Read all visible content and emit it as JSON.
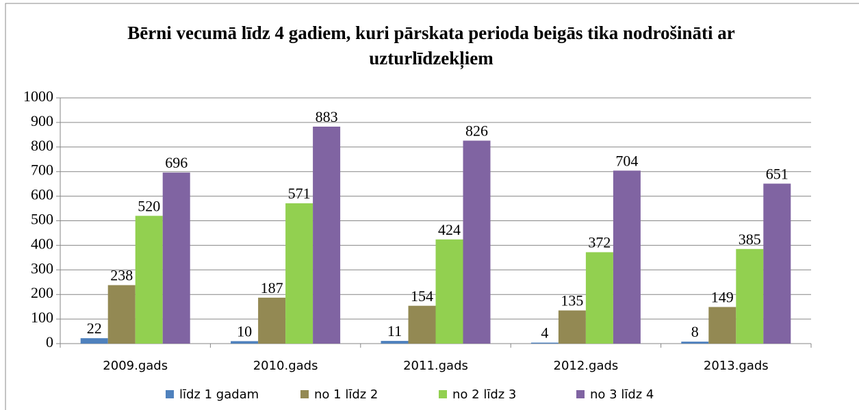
{
  "chart_data": {
    "type": "bar",
    "title": "Bērni vecumā līdz 4 gadiem, kuri pārskata perioda beigās tika nodrošināti ar uzturlīdzekļiem",
    "categories": [
      "2009.gads",
      "2010.gads",
      "2011.gads",
      "2012.gads",
      "2013.gads"
    ],
    "series": [
      {
        "name": "līdz 1 gadam",
        "color": "#4f81bd",
        "values": [
          22,
          10,
          11,
          4,
          8
        ]
      },
      {
        "name": "no 1 līdz 2",
        "color": "#938953",
        "values": [
          238,
          187,
          154,
          135,
          149
        ]
      },
      {
        "name": "no 2 līdz 3",
        "color": "#92d050",
        "values": [
          520,
          571,
          424,
          372,
          385
        ]
      },
      {
        "name": "no 3 līdz 4",
        "color": "#8064a2",
        "values": [
          696,
          883,
          826,
          704,
          651
        ]
      }
    ],
    "ylim": [
      0,
      1000
    ],
    "yticks": [
      0,
      100,
      200,
      300,
      400,
      500,
      600,
      700,
      800,
      900,
      1000
    ],
    "grid": true,
    "legend": "bottom"
  }
}
